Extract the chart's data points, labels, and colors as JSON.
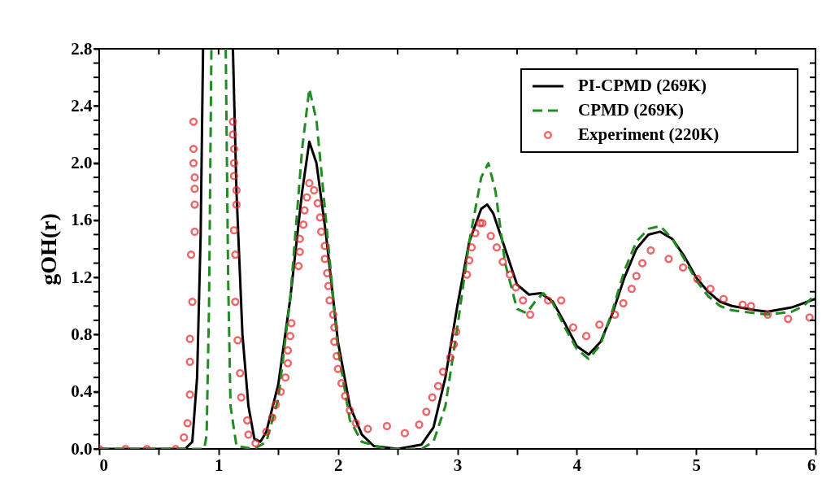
{
  "chart_data": {
    "type": "line",
    "ylabel": "gOH(r)",
    "xlim": [
      0,
      6
    ],
    "ylim": [
      0,
      2.8
    ],
    "xticks": [
      0,
      {
        "value": 0.5,
        "label": null
      },
      1,
      {
        "value": 1.5,
        "label": null
      },
      2,
      {
        "value": 2.5,
        "label": null
      },
      3,
      {
        "value": 3.5,
        "label": null
      },
      4,
      {
        "value": 4.5,
        "label": null
      },
      5,
      {
        "value": 5.5,
        "label": null
      },
      6
    ],
    "yticks": [
      {
        "value": 0,
        "label": "0.0"
      },
      {
        "value": 0.1,
        "label": null
      },
      {
        "value": 0.2,
        "label": null
      },
      {
        "value": 0.3,
        "label": null
      },
      {
        "value": 0.4,
        "label": "0.4"
      },
      {
        "value": 0.5,
        "label": null
      },
      {
        "value": 0.6,
        "label": null
      },
      {
        "value": 0.7,
        "label": null
      },
      {
        "value": 0.8,
        "label": "0.8"
      },
      {
        "value": 0.9,
        "label": null
      },
      {
        "value": 1.0,
        "label": null
      },
      {
        "value": 1.1,
        "label": null
      },
      {
        "value": 1.2,
        "label": "1.2"
      },
      {
        "value": 1.3,
        "label": null
      },
      {
        "value": 1.4,
        "label": null
      },
      {
        "value": 1.5,
        "label": null
      },
      {
        "value": 1.6,
        "label": "1.6"
      },
      {
        "value": 1.7,
        "label": null
      },
      {
        "value": 1.8,
        "label": null
      },
      {
        "value": 1.9,
        "label": null
      },
      {
        "value": 2.0,
        "label": "2.0"
      },
      {
        "value": 2.1,
        "label": null
      },
      {
        "value": 2.2,
        "label": null
      },
      {
        "value": 2.3,
        "label": null
      },
      {
        "value": 2.4,
        "label": "2.4"
      },
      {
        "value": 2.5,
        "label": null
      },
      {
        "value": 2.6,
        "label": null
      },
      {
        "value": 2.7,
        "label": null
      },
      {
        "value": 2.8,
        "label": "2.8"
      }
    ],
    "grid": false,
    "legend": "top right",
    "series": [
      {
        "name": "PI-CPMD (269K)",
        "type": "line",
        "color": "#000000",
        "line_style": "solid",
        "x": [
          0,
          0.5,
          0.72,
          0.78,
          0.82,
          0.85,
          0.87,
          0.9,
          1.1,
          1.12,
          1.15,
          1.2,
          1.25,
          1.3,
          1.35,
          1.4,
          1.5,
          1.6,
          1.7,
          1.76,
          1.82,
          1.9,
          2.0,
          2.1,
          2.2,
          2.3,
          2.5,
          2.7,
          2.8,
          2.9,
          3.0,
          3.1,
          3.2,
          3.25,
          3.3,
          3.4,
          3.5,
          3.6,
          3.7,
          3.8,
          3.9,
          4.0,
          4.1,
          4.2,
          4.3,
          4.4,
          4.5,
          4.6,
          4.7,
          4.8,
          4.9,
          5.0,
          5.1,
          5.2,
          5.3,
          5.5,
          5.6,
          5.8,
          6.0
        ],
        "values": [
          0,
          0,
          0,
          0.05,
          0.5,
          1.5,
          2.8,
          null,
          null,
          2.8,
          1.8,
          0.8,
          0.3,
          0.07,
          0.05,
          0.12,
          0.45,
          1.05,
          1.8,
          2.15,
          2.0,
          1.5,
          0.75,
          0.3,
          0.1,
          0.02,
          0,
          0.03,
          0.15,
          0.5,
          1.0,
          1.45,
          1.68,
          1.71,
          1.65,
          1.4,
          1.15,
          1.08,
          1.09,
          1.03,
          0.88,
          0.72,
          0.66,
          0.75,
          0.95,
          1.2,
          1.4,
          1.5,
          1.52,
          1.47,
          1.35,
          1.2,
          1.1,
          1.03,
          1.0,
          0.97,
          0.96,
          0.99,
          1.05
        ]
      },
      {
        "name": "CPMD (269K)",
        "type": "line",
        "color": "#228b22",
        "line_style": "dashed",
        "x": [
          0,
          0.5,
          0.88,
          0.9,
          0.92,
          0.94,
          0.96,
          1.04,
          1.06,
          1.08,
          1.1,
          1.15,
          1.3,
          1.4,
          1.5,
          1.6,
          1.7,
          1.76,
          1.82,
          1.9,
          2.0,
          2.1,
          2.2,
          2.4,
          2.7,
          2.8,
          2.9,
          3.0,
          3.1,
          3.2,
          3.26,
          3.32,
          3.4,
          3.5,
          3.58,
          3.65,
          3.72,
          3.8,
          3.9,
          4.0,
          4.1,
          4.2,
          4.3,
          4.4,
          4.5,
          4.6,
          4.7,
          4.8,
          4.9,
          5.0,
          5.1,
          5.2,
          5.3,
          5.5,
          5.6,
          5.8,
          5.9,
          6.0
        ],
        "values": [
          0,
          0,
          0,
          0.1,
          1.0,
          2.8,
          null,
          null,
          2.8,
          1.2,
          0.3,
          0.02,
          0,
          0.05,
          0.35,
          1.05,
          2.1,
          2.52,
          2.3,
          1.6,
          0.7,
          0.2,
          0.05,
          0,
          0,
          0.05,
          0.3,
          0.85,
          1.45,
          1.9,
          2.0,
          1.8,
          1.3,
          0.98,
          0.95,
          1.03,
          1.09,
          1.02,
          0.85,
          0.7,
          0.63,
          0.73,
          0.97,
          1.25,
          1.45,
          1.54,
          1.56,
          1.47,
          1.33,
          1.18,
          1.07,
          1.0,
          0.97,
          0.95,
          0.94,
          0.96,
          1.0,
          1.08
        ]
      },
      {
        "name": "Experiment (220K)",
        "type": "scatter",
        "color": "#e8262a",
        "marker": "circle",
        "x": [
          0.0,
          0.22,
          0.4,
          0.64,
          0.71,
          0.74,
          0.76,
          0.76,
          0.76,
          0.78,
          0.77,
          0.8,
          0.8,
          0.8,
          0.8,
          0.79,
          0.79,
          0.79,
          1.12,
          1.12,
          1.13,
          1.13,
          1.13,
          1.15,
          1.15,
          1.13,
          1.14,
          1.14,
          1.16,
          1.18,
          1.19,
          1.24,
          1.25,
          1.31,
          1.4,
          1.45,
          1.48,
          1.52,
          1.56,
          1.58,
          1.58,
          1.6,
          1.61,
          1.67,
          1.68,
          1.68,
          1.71,
          1.72,
          1.74,
          1.76,
          1.8,
          1.83,
          1.85,
          1.86,
          1.89,
          1.89,
          1.91,
          1.92,
          1.93,
          1.96,
          1.97,
          1.97,
          1.99,
          2.0,
          2.03,
          2.06,
          2.1,
          2.15,
          2.25,
          2.41,
          2.56,
          2.68,
          2.74,
          2.79,
          2.84,
          2.88,
          2.94,
          2.97,
          2.99,
          3.08,
          3.1,
          3.12,
          3.15,
          3.19,
          3.21,
          3.28,
          3.33,
          3.38,
          3.44,
          3.49,
          3.55,
          3.61,
          3.76,
          3.87,
          3.97,
          4.08,
          4.19,
          4.32,
          4.39,
          4.46,
          4.5,
          4.55,
          4.62,
          4.77,
          4.89,
          5.01,
          5.12,
          5.23,
          5.39,
          5.46,
          5.6,
          5.77,
          5.95
        ],
        "values": [
          0,
          0,
          0,
          0,
          0.08,
          0.18,
          0.38,
          0.61,
          0.77,
          1.03,
          1.36,
          1.52,
          1.71,
          1.82,
          1.9,
          2.0,
          2.1,
          2.29,
          2.29,
          2.2,
          2.1,
          2.0,
          1.91,
          1.81,
          1.71,
          1.53,
          1.36,
          1.03,
          0.76,
          0.53,
          0.36,
          0.2,
          0.1,
          0.04,
          0.12,
          0.22,
          0.31,
          0.4,
          0.5,
          0.6,
          0.69,
          0.79,
          0.88,
          1.28,
          1.38,
          1.47,
          1.57,
          1.67,
          1.76,
          1.86,
          1.81,
          1.72,
          1.62,
          1.52,
          1.42,
          1.33,
          1.23,
          1.14,
          1.04,
          0.94,
          0.85,
          0.75,
          0.65,
          0.56,
          0.46,
          0.37,
          0.27,
          0.18,
          0.14,
          0.16,
          0.11,
          0.17,
          0.26,
          0.36,
          0.44,
          0.54,
          0.64,
          0.73,
          0.82,
          1.22,
          1.32,
          1.41,
          1.51,
          1.58,
          1.58,
          1.49,
          1.41,
          1.31,
          1.22,
          1.13,
          1.04,
          0.94,
          1.04,
          1.04,
          0.85,
          0.79,
          0.87,
          0.94,
          1.02,
          1.12,
          1.21,
          1.3,
          1.39,
          1.33,
          1.27,
          1.19,
          1.12,
          1.05,
          1.01,
          1.0,
          0.94,
          0.91,
          0.92
        ]
      }
    ]
  }
}
